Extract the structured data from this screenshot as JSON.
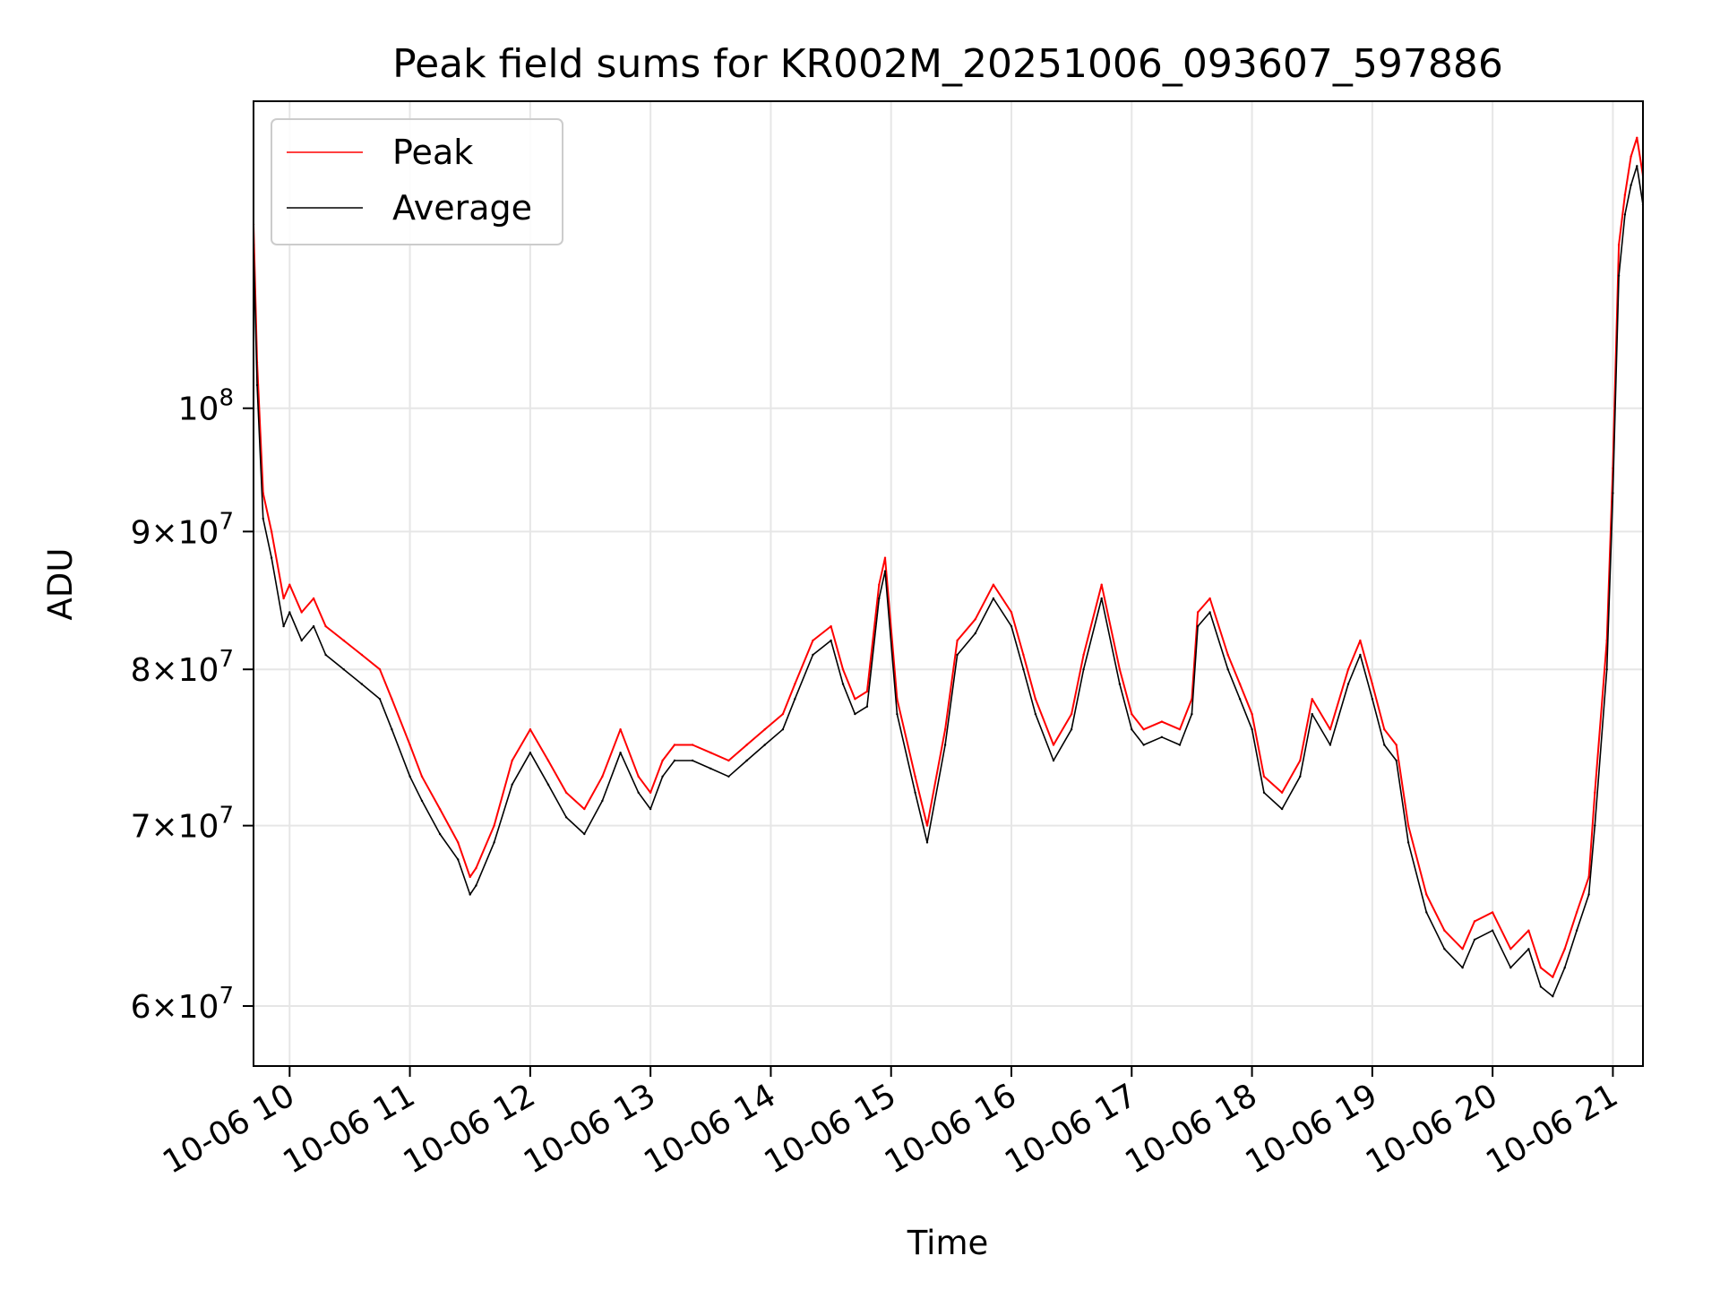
{
  "chart_data": {
    "type": "line",
    "title": "Peak field sums for KR002M_20251006_093607_597886",
    "xlabel": "Time",
    "ylabel": "ADU",
    "yscale": "log",
    "xlim": [
      9.7,
      21.25
    ],
    "ylim": [
      57000000,
      130000000
    ],
    "grid": true,
    "legend_position": "upper-left",
    "x_ticks": [
      {
        "value": 10,
        "label": "10-06 10"
      },
      {
        "value": 11,
        "label": "10-06 11"
      },
      {
        "value": 12,
        "label": "10-06 12"
      },
      {
        "value": 13,
        "label": "10-06 13"
      },
      {
        "value": 14,
        "label": "10-06 14"
      },
      {
        "value": 15,
        "label": "10-06 15"
      },
      {
        "value": 16,
        "label": "10-06 16"
      },
      {
        "value": 17,
        "label": "10-06 17"
      },
      {
        "value": 18,
        "label": "10-06 18"
      },
      {
        "value": 19,
        "label": "10-06 19"
      },
      {
        "value": 20,
        "label": "10-06 20"
      },
      {
        "value": 21,
        "label": "10-06 21"
      }
    ],
    "y_ticks": [
      {
        "value": 60000000,
        "mantissa": "6",
        "exponent": "7"
      },
      {
        "value": 70000000,
        "mantissa": "7",
        "exponent": "7"
      },
      {
        "value": 80000000,
        "mantissa": "8",
        "exponent": "7"
      },
      {
        "value": 90000000,
        "mantissa": "9",
        "exponent": "7"
      },
      {
        "value": 100000000,
        "mantissa": "",
        "exponent": "8"
      }
    ],
    "series": [
      {
        "name": "Peak",
        "color": "#ff0000",
        "x": [
          9.7,
          9.73,
          9.78,
          9.85,
          9.95,
          10.0,
          10.1,
          10.2,
          10.3,
          10.45,
          10.6,
          10.75,
          10.85,
          11.0,
          11.1,
          11.25,
          11.4,
          11.5,
          11.55,
          11.7,
          11.85,
          12.0,
          12.15,
          12.3,
          12.45,
          12.6,
          12.75,
          12.9,
          13.0,
          13.1,
          13.2,
          13.35,
          13.5,
          13.65,
          13.8,
          13.95,
          14.1,
          14.2,
          14.35,
          14.5,
          14.6,
          14.7,
          14.8,
          14.9,
          14.95,
          15.05,
          15.2,
          15.3,
          15.45,
          15.55,
          15.7,
          15.85,
          16.0,
          16.1,
          16.2,
          16.35,
          16.5,
          16.6,
          16.75,
          16.9,
          17.0,
          17.1,
          17.25,
          17.4,
          17.5,
          17.55,
          17.65,
          17.8,
          17.9,
          18.0,
          18.1,
          18.25,
          18.4,
          18.5,
          18.65,
          18.8,
          18.9,
          19.0,
          19.1,
          19.2,
          19.3,
          19.45,
          19.6,
          19.75,
          19.85,
          20.0,
          20.15,
          20.3,
          20.4,
          20.5,
          20.6,
          20.7,
          20.8,
          20.85,
          20.95,
          21.0,
          21.05,
          21.1,
          21.15,
          21.2,
          21.25
        ],
        "y": [
          117000000,
          104000000,
          93000000,
          90000000,
          85000000,
          86000000,
          84000000,
          85000000,
          83000000,
          82000000,
          81000000,
          80000000,
          78000000,
          75000000,
          73000000,
          71000000,
          69000000,
          67000000,
          67500000,
          70000000,
          74000000,
          76000000,
          74000000,
          72000000,
          71000000,
          73000000,
          76000000,
          73000000,
          72000000,
          74000000,
          75000000,
          75000000,
          74500000,
          74000000,
          75000000,
          76000000,
          77000000,
          79000000,
          82000000,
          83000000,
          80000000,
          78000000,
          78500000,
          86000000,
          88000000,
          78000000,
          73000000,
          70000000,
          76000000,
          82000000,
          83500000,
          86000000,
          84000000,
          81000000,
          78000000,
          75000000,
          77000000,
          81000000,
          86000000,
          80000000,
          77000000,
          76000000,
          76500000,
          76000000,
          78000000,
          84000000,
          85000000,
          81000000,
          79000000,
          77000000,
          73000000,
          72000000,
          74000000,
          78000000,
          76000000,
          80000000,
          82000000,
          79000000,
          76000000,
          75000000,
          70000000,
          66000000,
          64000000,
          63000000,
          64500000,
          65000000,
          63000000,
          64000000,
          62000000,
          61500000,
          63000000,
          65000000,
          67000000,
          72000000,
          82000000,
          95000000,
          115000000,
          120000000,
          124000000,
          126000000,
          122000000
        ]
      },
      {
        "name": "Average",
        "color": "#000000",
        "x": [
          9.7,
          9.73,
          9.78,
          9.85,
          9.95,
          10.0,
          10.1,
          10.2,
          10.3,
          10.45,
          10.6,
          10.75,
          10.85,
          11.0,
          11.1,
          11.25,
          11.4,
          11.5,
          11.55,
          11.7,
          11.85,
          12.0,
          12.15,
          12.3,
          12.45,
          12.6,
          12.75,
          12.9,
          13.0,
          13.1,
          13.2,
          13.35,
          13.5,
          13.65,
          13.8,
          13.95,
          14.1,
          14.2,
          14.35,
          14.5,
          14.6,
          14.7,
          14.8,
          14.9,
          14.95,
          15.05,
          15.2,
          15.3,
          15.45,
          15.55,
          15.7,
          15.85,
          16.0,
          16.1,
          16.2,
          16.35,
          16.5,
          16.6,
          16.75,
          16.9,
          17.0,
          17.1,
          17.25,
          17.4,
          17.5,
          17.55,
          17.65,
          17.8,
          17.9,
          18.0,
          18.1,
          18.25,
          18.4,
          18.5,
          18.65,
          18.8,
          18.9,
          19.0,
          19.1,
          19.2,
          19.3,
          19.45,
          19.6,
          19.75,
          19.85,
          20.0,
          20.15,
          20.3,
          20.4,
          20.5,
          20.6,
          20.7,
          20.8,
          20.85,
          20.95,
          21.0,
          21.05,
          21.1,
          21.15,
          21.2,
          21.25
        ],
        "y": [
          115000000,
          102000000,
          91000000,
          88000000,
          83000000,
          84000000,
          82000000,
          83000000,
          81000000,
          80000000,
          79000000,
          78000000,
          76000000,
          73000000,
          71500000,
          69500000,
          68000000,
          66000000,
          66500000,
          69000000,
          72500000,
          74500000,
          72500000,
          70500000,
          69500000,
          71500000,
          74500000,
          72000000,
          71000000,
          73000000,
          74000000,
          74000000,
          73500000,
          73000000,
          74000000,
          75000000,
          76000000,
          78000000,
          81000000,
          82000000,
          79000000,
          77000000,
          77500000,
          85000000,
          87000000,
          77000000,
          72000000,
          69000000,
          75000000,
          81000000,
          82500000,
          85000000,
          83000000,
          80000000,
          77000000,
          74000000,
          76000000,
          80000000,
          85000000,
          79000000,
          76000000,
          75000000,
          75500000,
          75000000,
          77000000,
          83000000,
          84000000,
          80000000,
          78000000,
          76000000,
          72000000,
          71000000,
          73000000,
          77000000,
          75000000,
          79000000,
          81000000,
          78000000,
          75000000,
          74000000,
          69000000,
          65000000,
          63000000,
          62000000,
          63500000,
          64000000,
          62000000,
          63000000,
          61000000,
          60500000,
          62000000,
          64000000,
          66000000,
          70000000,
          80000000,
          93000000,
          112000000,
          118000000,
          121000000,
          123000000,
          119000000
        ]
      }
    ]
  }
}
